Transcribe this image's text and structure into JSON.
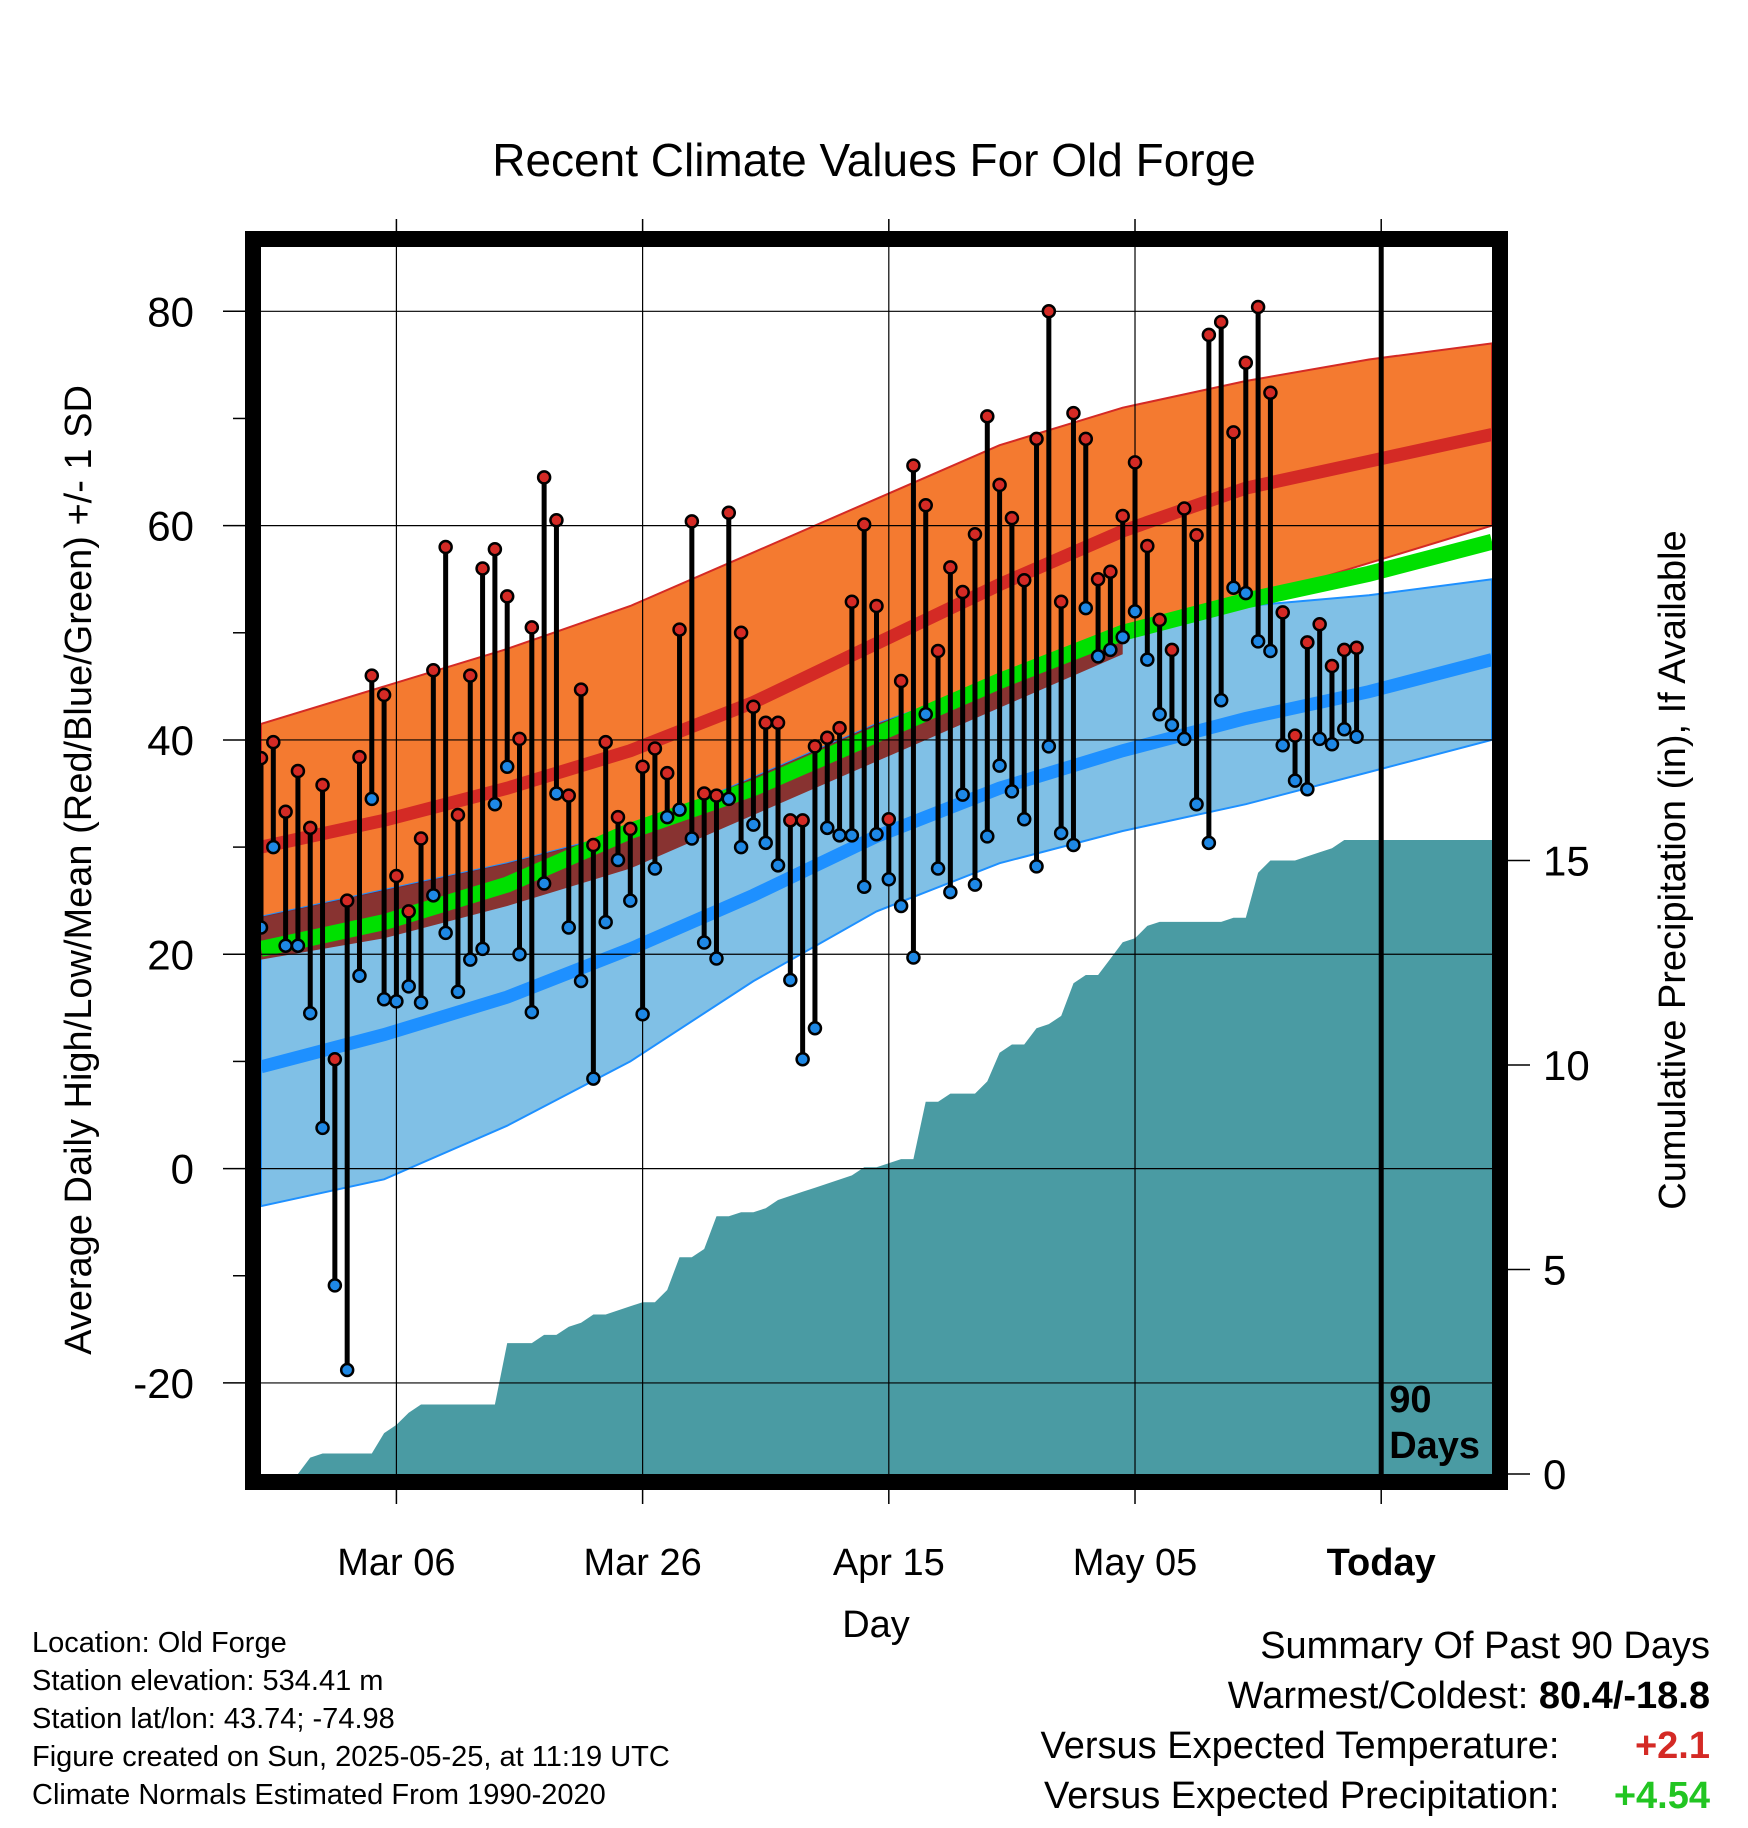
{
  "chart_data": {
    "type": "line",
    "title": "Recent Climate Values For Old Forge",
    "xlabel": "Day",
    "ylabel": "Average Daily High/Low/Mean (Red/Blue/Green) +/- 1 SD",
    "y2label": "Cumulative Precipitation (in), If Available",
    "xlim": [
      0,
      100
    ],
    "ylim": [
      -28.5,
      86
    ],
    "y2lim": [
      0,
      30
    ],
    "x_ticks": [
      {
        "x": 11,
        "label": "Mar 06"
      },
      {
        "x": 31,
        "label": "Mar 26"
      },
      {
        "x": 51,
        "label": "Apr 15"
      },
      {
        "x": 71,
        "label": "May 05"
      },
      {
        "x": 91,
        "label": "Today"
      }
    ],
    "y_ticks": [
      -20,
      0,
      20,
      40,
      60,
      80
    ],
    "y2_ticks": [
      0,
      5,
      10,
      15
    ],
    "today_x": 91,
    "today_label": "90\nDays",
    "grid": true,
    "colors": {
      "high_band": "#F47A30",
      "high_mean": "#D42A25",
      "low_band": "#80C0E6",
      "low_mean": "#1E90FF",
      "mean_line": "#00E000",
      "overlap": "#8A1A10",
      "precip": "#4A9BA3",
      "high_dot": "#D42A25",
      "low_dot": "#1E88E5"
    },
    "normals": {
      "x": [
        0,
        10,
        20,
        30,
        40,
        50,
        60,
        70,
        80,
        90,
        100
      ],
      "high_mean": [
        30,
        32.5,
        35.5,
        39,
        43.5,
        49,
        54.5,
        59.5,
        63.5,
        66,
        68.5
      ],
      "high_upper": [
        41.5,
        45,
        48.5,
        52.5,
        57.5,
        62.5,
        67.5,
        71,
        73.5,
        75.5,
        77
      ],
      "high_lower": [
        19.5,
        21.5,
        24.5,
        28,
        33,
        38,
        43,
        48,
        53,
        56.5,
        60
      ],
      "low_mean": [
        9.5,
        12.5,
        16,
        20.5,
        25.5,
        31,
        35.5,
        39,
        42,
        44.5,
        47.5
      ],
      "low_upper": [
        23.5,
        26,
        28.5,
        31.5,
        36.5,
        41.5,
        45.5,
        49.5,
        52.5,
        53.5,
        55
      ],
      "low_lower": [
        -3.5,
        -1,
        4,
        10,
        17.5,
        24,
        28.5,
        31.5,
        34,
        37,
        40
      ],
      "mean": [
        20.5,
        23,
        26.5,
        31.5,
        35.5,
        40.5,
        45.5,
        50,
        53,
        55.5,
        58.5
      ]
    },
    "series": [
      {
        "name": "Daily High",
        "x": [
          0,
          1,
          2,
          3,
          4,
          5,
          6,
          7,
          8,
          9,
          10,
          11,
          12,
          13,
          14,
          15,
          16,
          17,
          18,
          19,
          20,
          21,
          22,
          23,
          24,
          25,
          26,
          27,
          28,
          29,
          30,
          31,
          32,
          33,
          34,
          35,
          36,
          37,
          38,
          39,
          40,
          41,
          42,
          43,
          44,
          45,
          46,
          47,
          48,
          49,
          50,
          51,
          52,
          53,
          54,
          55,
          56,
          57,
          58,
          59,
          60,
          61,
          62,
          63,
          64,
          65,
          66,
          67,
          68,
          69,
          70,
          71,
          72,
          73,
          74,
          75,
          76,
          77,
          78,
          79,
          80,
          81,
          82,
          83,
          84,
          85,
          86,
          87,
          88,
          89
        ],
        "values": [
          38.3,
          39.8,
          33.3,
          37.1,
          31.8,
          35.8,
          10.2,
          25,
          38.4,
          46,
          44.2,
          27.3,
          24,
          30.8,
          46.5,
          58,
          33,
          46,
          56,
          57.8,
          53.4,
          40.1,
          50.5,
          64.5,
          60.5,
          34.8,
          44.7,
          30.2,
          39.8,
          32.8,
          31.7,
          37.5,
          39.2,
          36.9,
          50.3,
          60.4,
          35,
          34.8,
          61.2,
          50,
          43.1,
          41.6,
          41.6,
          32.5,
          32.5,
          39.4,
          40.2,
          41.1,
          52.9,
          60.1,
          52.5,
          32.6,
          45.5,
          65.6,
          61.9,
          48.3,
          56.1,
          53.8,
          59.2,
          70.2,
          63.8,
          60.7,
          54.9,
          68.1,
          80,
          52.9,
          70.5,
          68.1,
          55,
          55.7,
          60.9,
          65.9,
          58.1,
          51.2,
          48.4,
          61.6,
          59.1,
          77.8,
          79,
          68.7,
          75.2,
          80.4,
          72.4,
          51.9,
          40.4,
          49.1,
          50.8,
          46.9,
          48.4,
          48.6
        ]
      },
      {
        "name": "Daily Low",
        "x": [
          0,
          1,
          2,
          3,
          4,
          5,
          6,
          7,
          8,
          9,
          10,
          11,
          12,
          13,
          14,
          15,
          16,
          17,
          18,
          19,
          20,
          21,
          22,
          23,
          24,
          25,
          26,
          27,
          28,
          29,
          30,
          31,
          32,
          33,
          34,
          35,
          36,
          37,
          38,
          39,
          40,
          41,
          42,
          43,
          44,
          45,
          46,
          47,
          48,
          49,
          50,
          51,
          52,
          53,
          54,
          55,
          56,
          57,
          58,
          59,
          60,
          61,
          62,
          63,
          64,
          65,
          66,
          67,
          68,
          69,
          70,
          71,
          72,
          73,
          74,
          75,
          76,
          77,
          78,
          79,
          80,
          81,
          82,
          83,
          84,
          85,
          86,
          87,
          88,
          89
        ],
        "values": [
          22.5,
          30,
          20.8,
          20.8,
          14.5,
          3.8,
          -10.9,
          -18.8,
          18,
          34.5,
          15.8,
          15.6,
          17,
          15.5,
          25.5,
          22,
          16.5,
          19.5,
          20.5,
          34,
          37.5,
          20,
          14.6,
          26.6,
          35,
          22.5,
          17.5,
          8.4,
          23,
          28.8,
          25,
          14.4,
          28,
          32.8,
          33.5,
          30.8,
          21.1,
          19.6,
          34.5,
          30,
          32.1,
          30.4,
          28.3,
          17.6,
          10.2,
          13.1,
          31.8,
          31.1,
          31.1,
          26.3,
          31.2,
          27,
          24.5,
          19.7,
          42.4,
          28,
          25.8,
          34.9,
          26.5,
          31,
          37.6,
          35.2,
          32.6,
          28.2,
          39.4,
          31.3,
          30.2,
          52.3,
          47.8,
          48.4,
          49.6,
          52,
          47.5,
          42.4,
          41.4,
          40.1,
          34,
          30.4,
          43.7,
          54.2,
          53.7,
          49.2,
          48.3,
          39.5,
          36.2,
          35.4,
          40.1,
          39.6,
          41,
          40.3
        ]
      },
      {
        "name": "Cumulative Precipitation",
        "axis": "y2",
        "x": [
          0,
          1,
          2,
          3,
          4,
          5,
          6,
          7,
          8,
          9,
          10,
          11,
          12,
          13,
          14,
          15,
          16,
          17,
          18,
          19,
          20,
          21,
          22,
          23,
          24,
          25,
          26,
          27,
          28,
          29,
          30,
          31,
          32,
          33,
          34,
          35,
          36,
          37,
          38,
          39,
          40,
          41,
          42,
          43,
          44,
          45,
          46,
          47,
          48,
          49,
          50,
          51,
          52,
          53,
          54,
          55,
          56,
          57,
          58,
          59,
          60,
          61,
          62,
          63,
          64,
          65,
          66,
          67,
          68,
          69,
          70,
          71,
          72,
          73,
          74,
          75,
          76,
          77,
          78,
          79,
          80,
          81,
          82,
          83,
          84,
          85,
          86,
          87,
          88,
          89,
          90,
          91,
          92,
          93,
          94,
          95,
          96,
          97,
          98,
          99,
          100
        ],
        "values": [
          0,
          0,
          0,
          0,
          0.4,
          0.5,
          0.5,
          0.5,
          0.5,
          0.5,
          1,
          1.2,
          1.5,
          1.7,
          1.7,
          1.7,
          1.7,
          1.7,
          1.7,
          1.7,
          3.2,
          3.2,
          3.2,
          3.4,
          3.4,
          3.6,
          3.7,
          3.9,
          3.9,
          4,
          4.1,
          4.2,
          4.2,
          4.5,
          5.3,
          5.3,
          5.5,
          6.3,
          6.3,
          6.4,
          6.4,
          6.5,
          6.7,
          6.8,
          6.9,
          7,
          7.1,
          7.2,
          7.3,
          7.5,
          7.5,
          7.6,
          7.7,
          7.7,
          9.1,
          9.1,
          9.3,
          9.3,
          9.3,
          9.6,
          10.3,
          10.5,
          10.5,
          10.9,
          11,
          11.2,
          12,
          12.2,
          12.2,
          12.6,
          13,
          13.1,
          13.4,
          13.5,
          13.5,
          13.5,
          13.5,
          13.5,
          13.5,
          13.6,
          13.6,
          14.7,
          15,
          15,
          15,
          15.1,
          15.2,
          15.3,
          15.5,
          15.5,
          15.5,
          15.5,
          15.5,
          15.5,
          15.5,
          15.5,
          15.5,
          15.5,
          15.5,
          15.5,
          15.5
        ]
      }
    ]
  },
  "footer": {
    "location": "Location: Old Forge",
    "elevation": "Station elevation: 534.41 m",
    "latlon": "Station lat/lon: 43.74; -74.98",
    "created": "Figure created on Sun, 2025-05-25, at 11:19 UTC",
    "normals": "Climate Normals Estimated From 1990-2020"
  },
  "summary": {
    "heading": "Summary Of Past 90 Days",
    "warm_cold_label": "Warmest/Coldest:",
    "warm_cold_value": "80.4/-18.8",
    "temp_label": "Versus Expected Temperature:",
    "temp_value": "+2.1",
    "temp_color": "#D42A25",
    "precip_label": "Versus Expected Precipitation:",
    "precip_value": "+4.54",
    "precip_color": "#22C522"
  }
}
